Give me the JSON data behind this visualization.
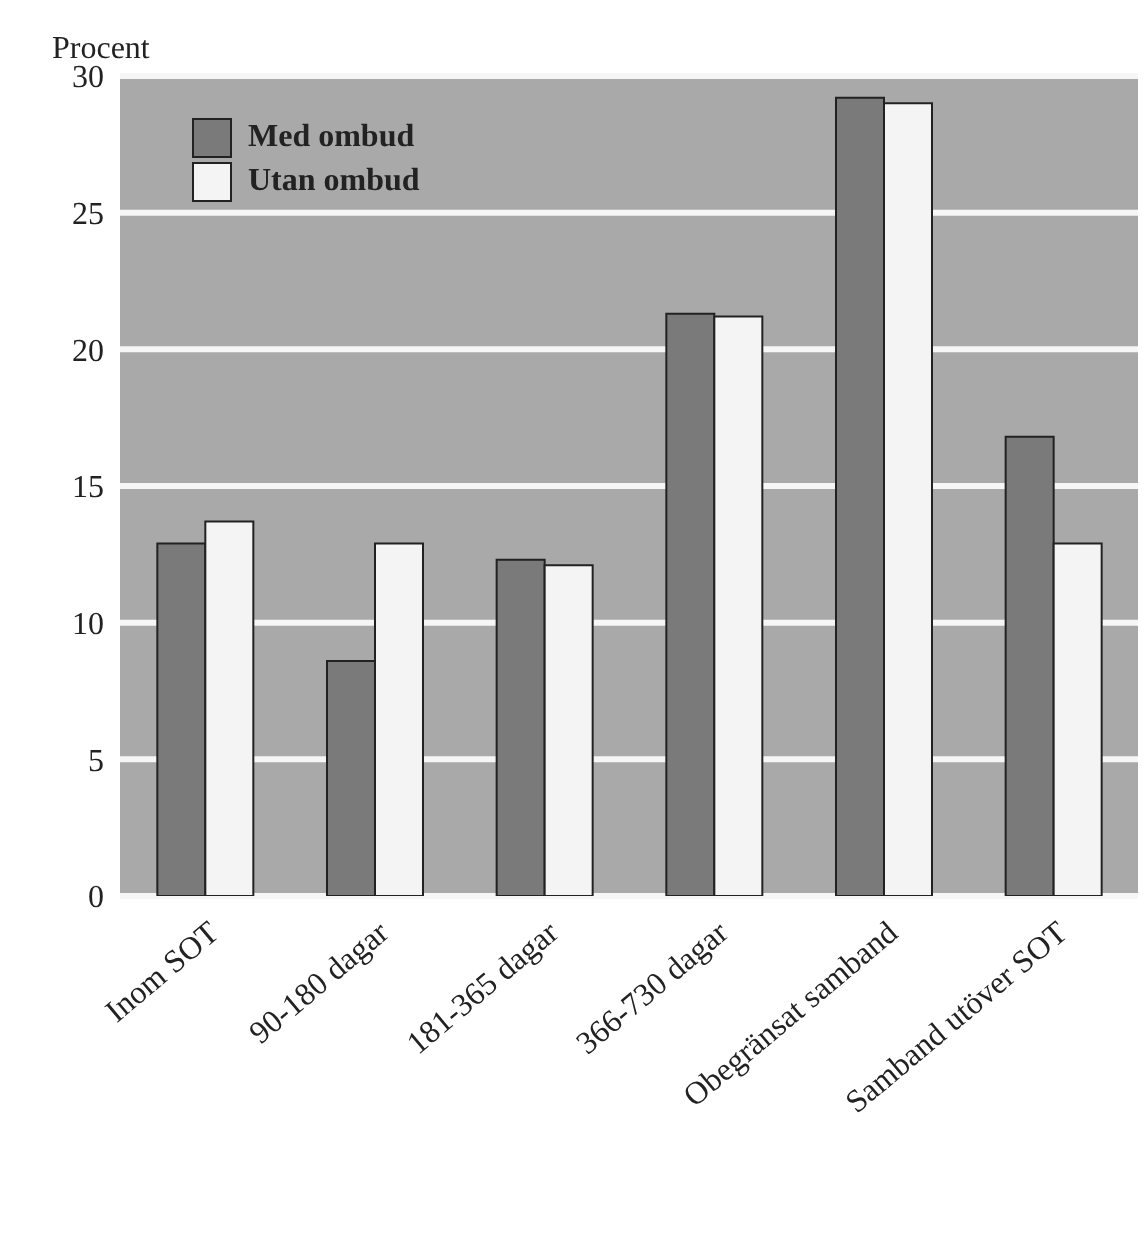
{
  "chart_data": {
    "type": "bar",
    "ylabel": "Procent",
    "categories": [
      "Inom SOT",
      "90-180 dagar",
      "181-365 dagar",
      "366-730 dagar",
      "Obegränsat samband",
      "Samband utöver SOT"
    ],
    "series": [
      {
        "name": "Med ombud",
        "color": "#7a7a7a",
        "values": [
          12.9,
          8.6,
          12.3,
          21.3,
          29.2,
          16.8
        ]
      },
      {
        "name": "Utan ombud",
        "color": "#f4f4f4",
        "values": [
          13.7,
          12.9,
          12.1,
          21.2,
          29.0,
          12.9
        ]
      }
    ],
    "ylim": [
      0,
      30
    ],
    "yticks": [
      0,
      5,
      10,
      15,
      20,
      25,
      30
    ],
    "grid": "y",
    "legend": "top left"
  }
}
